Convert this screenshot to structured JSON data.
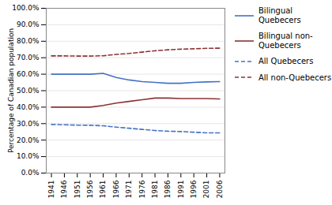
{
  "chart_data": {
    "type": "line",
    "ylabel": "Percentage of Canadian population",
    "x": [
      1941,
      1946,
      1951,
      1956,
      1961,
      1966,
      1971,
      1976,
      1981,
      1986,
      1991,
      1996,
      2001,
      2006
    ],
    "xlim": [
      1939,
      2008
    ],
    "xticks": [
      1941,
      1946,
      1951,
      1956,
      1961,
      1966,
      1971,
      1976,
      1981,
      1986,
      1991,
      1996,
      2001,
      2006
    ],
    "ylim": [
      0.0,
      1.0
    ],
    "yticks": [
      {
        "value": 0.0,
        "label": "0.0%"
      },
      {
        "value": 0.1,
        "label": "10.0%"
      },
      {
        "value": 0.2,
        "label": "20.0%"
      },
      {
        "value": 0.3,
        "label": "30.0%"
      },
      {
        "value": 0.4,
        "label": "40.0%"
      },
      {
        "value": 0.5,
        "label": "50.0%"
      },
      {
        "value": 0.6,
        "label": "60.0%"
      },
      {
        "value": 0.7,
        "label": "70.0%"
      },
      {
        "value": 0.8,
        "label": "80.0%"
      },
      {
        "value": 0.9,
        "label": "90.0%"
      },
      {
        "value": 1.0,
        "label": "100.0%"
      }
    ],
    "grid": "y",
    "legend": "right",
    "series": [
      {
        "name": "Bilingual Quebecers",
        "color": "#4472C4",
        "line_style": "solid",
        "values": [
          0.6,
          0.6,
          0.6,
          0.6,
          0.605,
          0.58,
          0.565,
          0.555,
          0.55,
          0.545,
          0.545,
          0.55,
          0.553,
          0.555
        ]
      },
      {
        "name": "Bilingual non-\nQuebecers",
        "color": "#8B3333",
        "line_style": "solid",
        "values": [
          0.4,
          0.4,
          0.4,
          0.4,
          0.41,
          0.425,
          0.435,
          0.445,
          0.455,
          0.455,
          0.452,
          0.452,
          0.452,
          0.45
        ]
      },
      {
        "name": "All Quebecers",
        "color": "#4472C4",
        "line_style": "dashed",
        "values": [
          0.295,
          0.293,
          0.291,
          0.29,
          0.287,
          0.279,
          0.272,
          0.265,
          0.258,
          0.254,
          0.252,
          0.248,
          0.244,
          0.244
        ]
      },
      {
        "name": "All non-Quebecers",
        "color": "#8B3333",
        "line_style": "dashed",
        "values": [
          0.711,
          0.711,
          0.71,
          0.71,
          0.712,
          0.72,
          0.726,
          0.734,
          0.742,
          0.748,
          0.752,
          0.754,
          0.757,
          0.758
        ]
      }
    ]
  }
}
